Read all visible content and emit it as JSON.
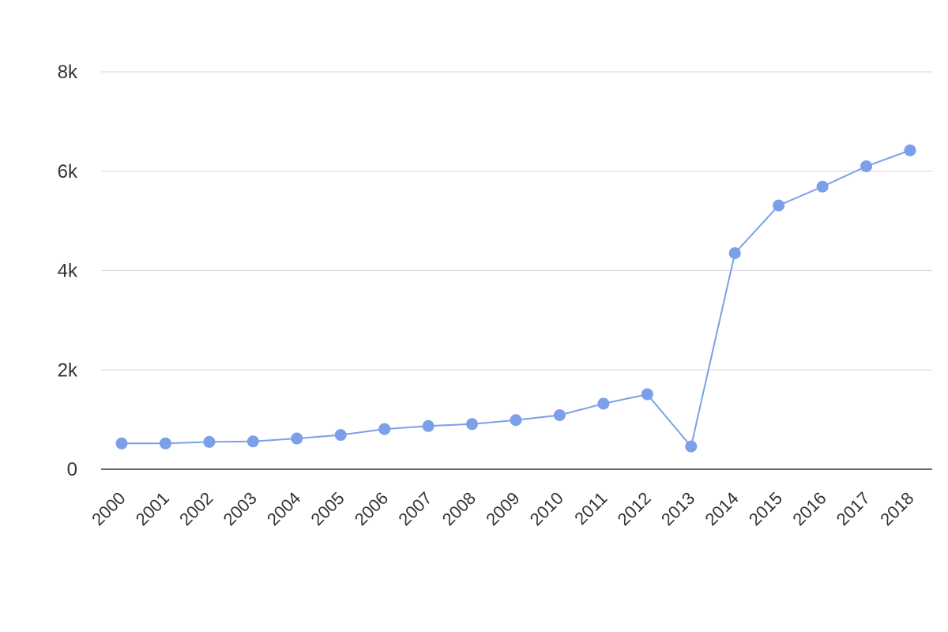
{
  "chart_data": {
    "type": "line",
    "title": "",
    "xlabel": "",
    "ylabel": "",
    "categories": [
      "2000",
      "2001",
      "2002",
      "2003",
      "2004",
      "2005",
      "2006",
      "2007",
      "2008",
      "2009",
      "2010",
      "2011",
      "2012",
      "2013",
      "2014",
      "2015",
      "2016",
      "2017",
      "2018"
    ],
    "series": [
      {
        "values": [
          520,
          520,
          550,
          560,
          620,
          690,
          810,
          870,
          910,
          990,
          1090,
          1320,
          1510,
          460,
          4350,
          5310,
          5690,
          6100,
          6420
        ]
      }
    ],
    "ylim": [
      0,
      8000
    ],
    "y_ticks": [
      0,
      2000,
      4000,
      6000,
      8000
    ],
    "y_tick_labels": [
      "0",
      "2k",
      "4k",
      "6k",
      "8k"
    ],
    "grid": true,
    "legend": "none",
    "colors": {
      "series": "#7ba0e8",
      "grid": "#dddddd",
      "axis": "#333333",
      "text": "#333333"
    }
  }
}
